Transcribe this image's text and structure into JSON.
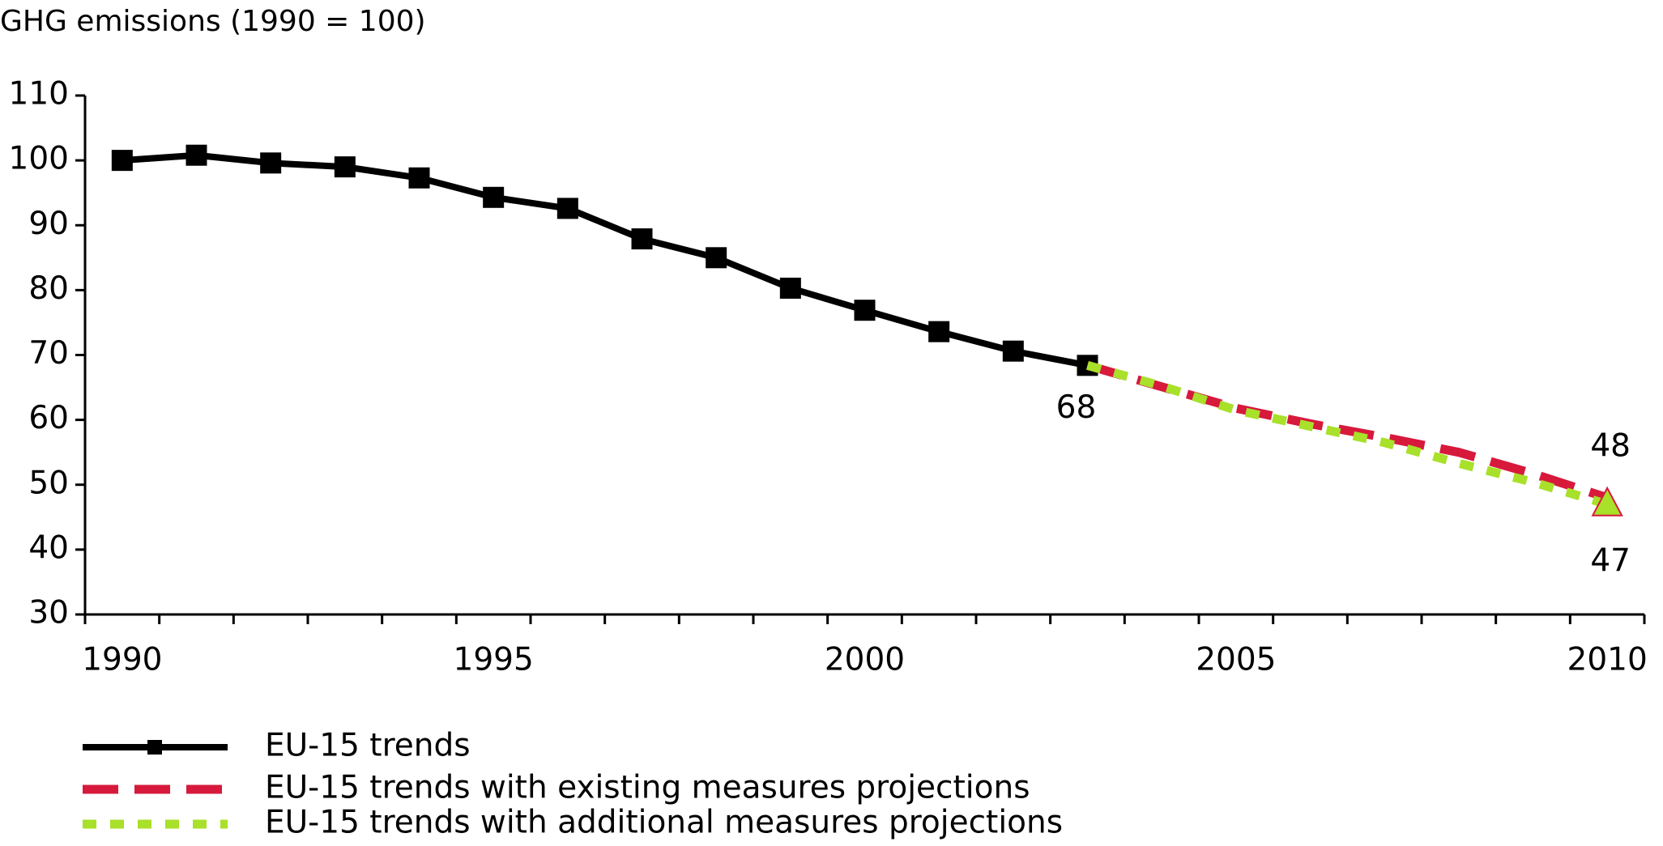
{
  "chart_data": {
    "type": "line",
    "title": "GHG emissions (1990 = 100)",
    "categories": [
      "1990",
      null,
      null,
      null,
      null,
      "1995",
      null,
      null,
      null,
      null,
      "2000",
      null,
      null,
      null,
      null,
      "2005",
      null,
      null,
      null,
      null,
      "2010"
    ],
    "series": [
      {
        "name": "EU-15 trends",
        "color": "#000000",
        "values": [
          100,
          100.8,
          99.6,
          99.0,
          97.3,
          94.3,
          92.6,
          87.9,
          85.0,
          80.3,
          76.9,
          73.6,
          70.6,
          68.4,
          null,
          null,
          null,
          null,
          null,
          null,
          null
        ],
        "value_labels": [
          null,
          null,
          null,
          null,
          null,
          null,
          null,
          null,
          null,
          null,
          null,
          null,
          null,
          "68",
          null,
          null,
          null,
          null,
          null,
          null,
          null
        ]
      },
      {
        "name": "EU-15 trends with existing measures projections",
        "color": "#d7193c",
        "values": [
          null,
          null,
          null,
          null,
          null,
          null,
          null,
          null,
          null,
          null,
          null,
          null,
          null,
          68.4,
          65.1,
          61.8,
          59.4,
          57.3,
          55.0,
          51.7,
          48
        ]
      },
      {
        "name": "EU-15 trends with additional measures projections",
        "color": "#a8e02a",
        "values": [
          null,
          null,
          null,
          null,
          null,
          null,
          null,
          null,
          null,
          null,
          null,
          null,
          null,
          68.4,
          65.2,
          61.5,
          59.0,
          56.5,
          53.3,
          50.4,
          47
        ]
      }
    ],
    "ylim": [
      30,
      110
    ],
    "yticks": [
      30,
      40,
      50,
      60,
      70,
      80,
      90,
      100,
      110
    ]
  }
}
